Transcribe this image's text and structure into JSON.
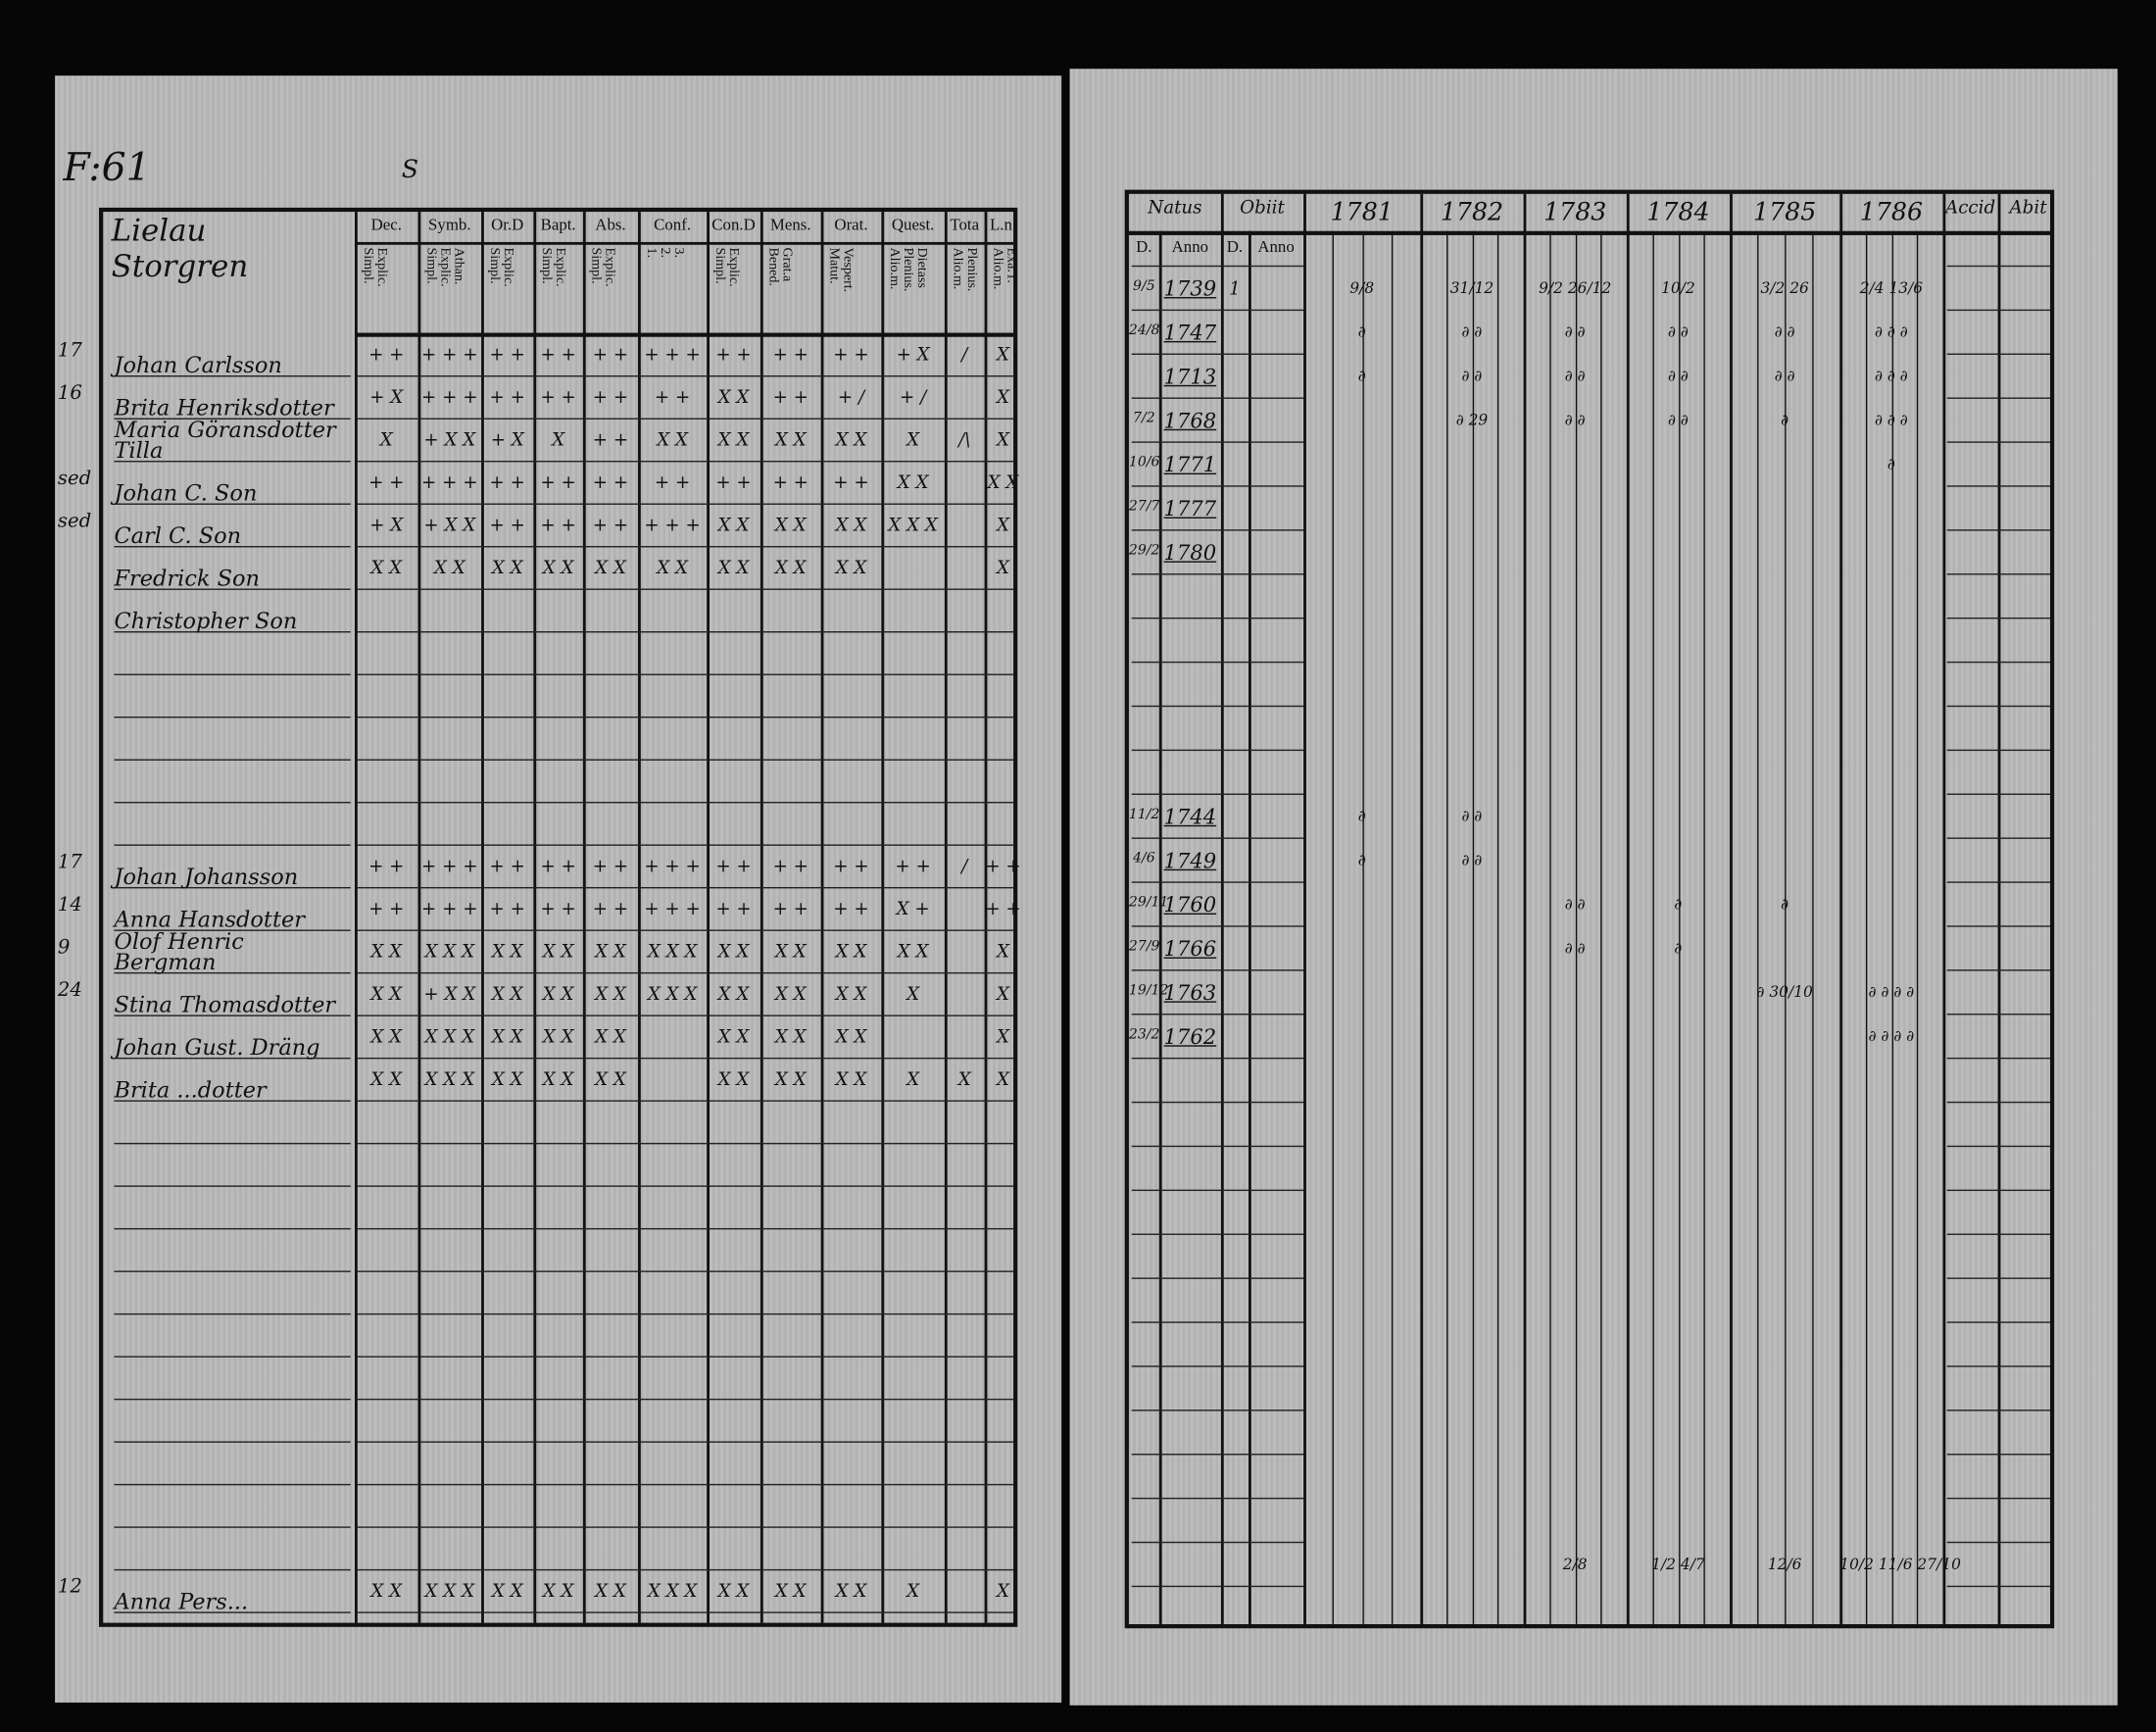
{
  "left_page": {
    "folio": "F:61",
    "stray_mark": "S",
    "title": "Lielau Storgren",
    "columns": [
      {
        "label": "Dec.",
        "sub": "Explic.\nSimpl."
      },
      {
        "label": "Symb.",
        "sub": "Athan.\nExplic.\nSimpl."
      },
      {
        "label": "Or.D",
        "sub": "Explic.\nSimpl."
      },
      {
        "label": "Bapt.",
        "sub": "Explic.\nSimpl."
      },
      {
        "label": "Abs.",
        "sub": "Explic.\nSimpl."
      },
      {
        "label": "Conf.",
        "sub": "3.\n2.\n1."
      },
      {
        "label": "Con.D",
        "sub": "Explic.\nSimpl."
      },
      {
        "label": "Mens.",
        "sub": "Grat.a\nBened."
      },
      {
        "label": "Orat.",
        "sub": "Vespert.\nMatut."
      },
      {
        "label": "Quest.",
        "sub": "Dietass\nPlenius.\nAlio.m."
      },
      {
        "label": "Tota",
        "sub": "Plenius.\nAlio.m."
      },
      {
        "label": "L.n.",
        "sub": "Exa.T.\nAlio.m."
      }
    ],
    "rows": [
      {
        "index": 0,
        "margin": "17",
        "name": "Johan Carlsson",
        "marks": [
          "+ +",
          "+ + +",
          "+ +",
          "+ +",
          "+ +",
          "+ + +",
          "+ +",
          "+ +",
          "+ +",
          "+ X",
          "/",
          "X"
        ]
      },
      {
        "index": 1,
        "margin": "16",
        "name": "Brita Henriksdotter",
        "marks": [
          "+ X",
          "+ + +",
          "+ +",
          "+ +",
          "+ +",
          "+ +",
          "X X",
          "+ +",
          "+ /",
          "+ /",
          "",
          "X"
        ]
      },
      {
        "index": 2,
        "margin": "",
        "name": "Maria Göransdotter Tilla",
        "marks": [
          "X",
          "+ X X",
          "+ X",
          "X",
          "+ +",
          "X X",
          "X X",
          "X X",
          "X X",
          "X",
          "/\\",
          "X"
        ]
      },
      {
        "index": 3,
        "margin": "sed",
        "name": "Johan C. Son",
        "marks": [
          "+ +",
          "+ + +",
          "+ +",
          "+ +",
          "+ +",
          "+ +",
          "+ +",
          "+ +",
          "+ +",
          "X X",
          "",
          "X X"
        ]
      },
      {
        "index": 4,
        "margin": "sed",
        "name": "Carl C. Son",
        "marks": [
          "+ X",
          "+ X X",
          "+ +",
          "+ +",
          "+ +",
          "+ + +",
          "X X",
          "X X",
          "X X",
          "X X X",
          "",
          "X"
        ]
      },
      {
        "index": 5,
        "margin": "",
        "name": "Fredrick Son",
        "marks": [
          "X X",
          "X X",
          "X X",
          "X X",
          "X X",
          "X X",
          "X X",
          "X X",
          "X X",
          "",
          "",
          "X"
        ]
      },
      {
        "index": 6,
        "margin": "",
        "name": "Christopher Son",
        "marks": [
          "",
          "",
          "",
          "",
          "",
          "",
          "",
          "",
          "",
          "",
          "",
          ""
        ]
      },
      {
        "index": 12,
        "margin": "17",
        "name": "Johan Johansson",
        "marks": [
          "+ +",
          "+ + +",
          "+ +",
          "+ +",
          "+ +",
          "+ + +",
          "+ +",
          "+ +",
          "+ +",
          "+ +",
          "/",
          "+ +"
        ]
      },
      {
        "index": 13,
        "margin": "14",
        "name": "Anna Hansdotter",
        "marks": [
          "+ +",
          "+ + +",
          "+ +",
          "+ +",
          "+ +",
          "+ + +",
          "+ +",
          "+ +",
          "+ +",
          "X +",
          "",
          "+ +"
        ]
      },
      {
        "index": 14,
        "margin": "9",
        "name": "Olof Henric Bergman",
        "marks": [
          "X X",
          "X X X",
          "X X",
          "X X",
          "X X",
          "X X X",
          "X X",
          "X X",
          "X X",
          "X X",
          "",
          "X"
        ]
      },
      {
        "index": 15,
        "margin": "24",
        "name": "Stina Thomasdotter",
        "marks": [
          "X X",
          "+ X X",
          "X X",
          "X X",
          "X X",
          "X X X",
          "X X",
          "X X",
          "X X",
          "X",
          "",
          "X"
        ]
      },
      {
        "index": 16,
        "margin": "",
        "name": "Johan Gust. Dräng",
        "marks": [
          "X X",
          "X X X",
          "X X",
          "X X",
          "X X",
          "",
          "X X",
          "X X",
          "X X",
          "",
          "",
          "X"
        ]
      },
      {
        "index": 17,
        "margin": "",
        "name": "Brita ...dotter",
        "marks": [
          "X X",
          "X X X",
          "X X",
          "X X",
          "X X",
          "",
          "X X",
          "X X",
          "X X",
          "X",
          "X",
          "X"
        ]
      },
      {
        "index": 29,
        "margin": "12",
        "name": "Anna Pers...",
        "marks": [
          "X X",
          "X X X",
          "X X",
          "X X",
          "X X",
          "X X X",
          "X X",
          "X X",
          "X X",
          "X",
          "",
          "X"
        ]
      }
    ]
  },
  "right_page": {
    "columns": [
      {
        "label": "Natus",
        "sub": [
          "D.",
          "Anno"
        ]
      },
      {
        "label": "Obiit",
        "sub": [
          "D.",
          "Anno"
        ]
      },
      {
        "label": "1781"
      },
      {
        "label": "1782"
      },
      {
        "label": "1783"
      },
      {
        "label": "1784"
      },
      {
        "label": "1785"
      },
      {
        "label": "1786"
      },
      {
        "label": "Accid"
      },
      {
        "label": "Abit"
      }
    ],
    "rows": [
      {
        "index": 0,
        "born_day": "9/5",
        "born_year": "1739",
        "obit_day": "1",
        "years": [
          "9/8",
          "31/12",
          "9/2 26/12",
          "10/2",
          "3/2 26",
          "2/4 13/6"
        ]
      },
      {
        "index": 1,
        "born_day": "24/8",
        "born_year": "1747",
        "years": [
          "∂",
          "∂ ∂",
          "∂ ∂",
          "∂ ∂",
          "∂ ∂",
          "∂ ∂ ∂"
        ]
      },
      {
        "index": 2,
        "born_day": "",
        "born_year": "1713",
        "years": [
          "∂",
          "∂ ∂",
          "∂ ∂",
          "∂ ∂",
          "∂ ∂",
          "∂ ∂ ∂"
        ]
      },
      {
        "index": 3,
        "born_day": "7/2",
        "born_year": "1768",
        "years": [
          "",
          "∂ 29",
          "∂ ∂",
          "∂ ∂",
          "∂",
          "∂ ∂ ∂"
        ]
      },
      {
        "index": 4,
        "born_day": "10/6",
        "born_year": "1771",
        "years": [
          "",
          "",
          "",
          "",
          "",
          "∂"
        ]
      },
      {
        "index": 5,
        "born_day": "27/7",
        "born_year": "1777",
        "years": [
          "",
          "",
          "",
          "",
          "",
          ""
        ]
      },
      {
        "index": 6,
        "born_day": "29/2",
        "born_year": "1780",
        "years": [
          "",
          "",
          "",
          "",
          "",
          ""
        ]
      },
      {
        "index": 12,
        "born_day": "11/2",
        "born_year": "1744",
        "years": [
          "∂",
          "∂ ∂",
          "",
          "",
          "",
          ""
        ]
      },
      {
        "index": 13,
        "born_day": "4/6",
        "born_year": "1749",
        "years": [
          "∂",
          "∂ ∂",
          "",
          "",
          "",
          ""
        ]
      },
      {
        "index": 14,
        "born_day": "29/11",
        "born_year": "1760",
        "years": [
          "",
          "",
          "∂ ∂",
          "∂",
          "∂",
          ""
        ]
      },
      {
        "index": 15,
        "born_day": "27/9",
        "born_year": "1766",
        "years": [
          "",
          "",
          "∂ ∂",
          "∂",
          "",
          ""
        ]
      },
      {
        "index": 16,
        "born_day": "19/12",
        "born_year": "1763",
        "years": [
          "",
          "",
          "",
          "",
          "∂ 30/10",
          "∂ ∂ ∂ ∂"
        ]
      },
      {
        "index": 17,
        "born_day": "23/2",
        "born_year": "1762",
        "years": [
          "",
          "",
          "",
          "",
          "",
          "∂ ∂ ∂ ∂"
        ]
      },
      {
        "index": 29,
        "born_day": "",
        "born_year": "",
        "years": [
          "",
          "",
          "2/8",
          "1/2 4/7",
          "12/6",
          "10/2 11/6 27/10"
        ]
      }
    ]
  }
}
